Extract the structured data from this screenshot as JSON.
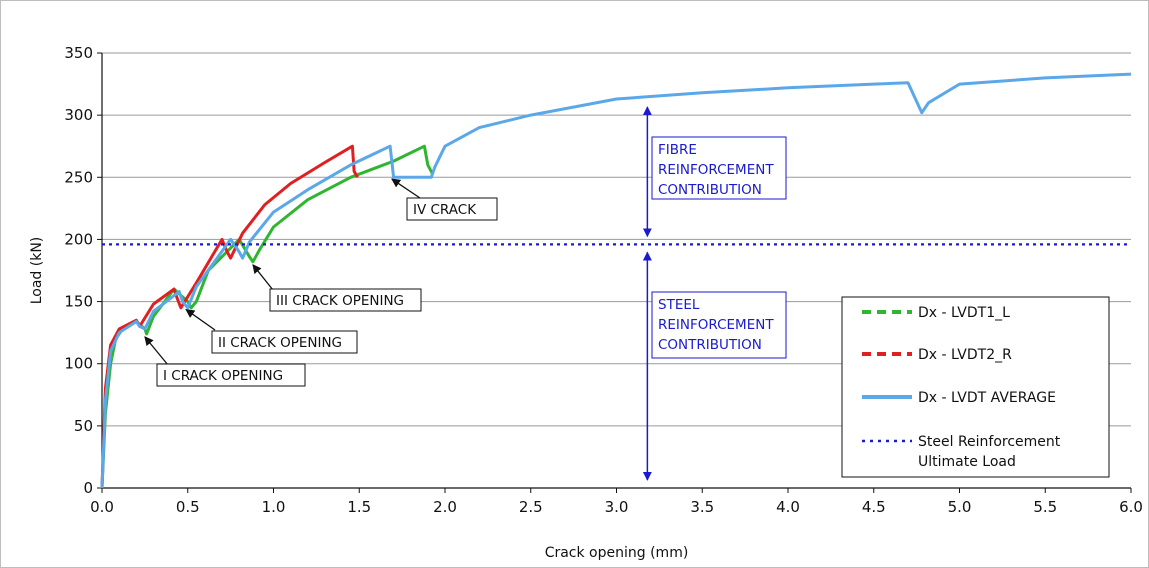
{
  "chart_data": {
    "type": "line",
    "xlabel": "Crack opening (mm)",
    "ylabel": "Load (kN)",
    "xlim": [
      0,
      6
    ],
    "ylim": [
      0,
      350
    ],
    "xticks": [
      "0.0",
      "0.5",
      "1.0",
      "1.5",
      "2.0",
      "2.5",
      "3.0",
      "3.5",
      "4.0",
      "4.5",
      "5.0",
      "5.5",
      "6.0"
    ],
    "yticks": [
      "0",
      "50",
      "100",
      "150",
      "200",
      "250",
      "300",
      "350"
    ],
    "grid": "horizontal",
    "legend_position": "right",
    "series": [
      {
        "name": "Dx - LVDT1_L",
        "color": "#2fb52f",
        "style": "dashed",
        "x": [
          0,
          0.02,
          0.05,
          0.08,
          0.12,
          0.2,
          0.25,
          0.26,
          0.3,
          0.42,
          0.5,
          0.52,
          0.55,
          0.62,
          0.8,
          0.86,
          0.88,
          0.92,
          1.0,
          1.2,
          1.45,
          1.7,
          1.88,
          1.9,
          1.93
        ],
        "y": [
          0,
          60,
          100,
          120,
          128,
          134,
          128,
          124,
          138,
          160,
          150,
          145,
          150,
          175,
          200,
          186,
          182,
          192,
          210,
          232,
          250,
          263,
          275,
          260,
          252
        ]
      },
      {
        "name": "Dx - LVDT2_R",
        "color": "#e02020",
        "style": "dashed",
        "x": [
          0,
          0.02,
          0.05,
          0.1,
          0.2,
          0.22,
          0.3,
          0.42,
          0.44,
          0.46,
          0.55,
          0.7,
          0.73,
          0.75,
          0.82,
          0.95,
          1.1,
          1.3,
          1.46,
          1.47,
          1.49
        ],
        "y": [
          0,
          80,
          115,
          128,
          135,
          130,
          148,
          160,
          152,
          145,
          165,
          200,
          190,
          185,
          205,
          228,
          245,
          262,
          275,
          255,
          250
        ]
      },
      {
        "name": "Dx - LVDT AVERAGE",
        "color": "#5aa8ea",
        "style": "solid",
        "x": [
          0,
          0.02,
          0.05,
          0.1,
          0.2,
          0.22,
          0.25,
          0.3,
          0.45,
          0.47,
          0.5,
          0.55,
          0.75,
          0.8,
          0.82,
          0.86,
          1.0,
          1.2,
          1.45,
          1.68,
          1.7,
          1.92,
          1.94,
          2.0,
          2.2,
          2.5,
          3.0,
          3.5,
          4.0,
          4.5,
          4.7,
          4.78,
          4.82,
          5.0,
          5.5,
          6.0
        ],
        "y": [
          0,
          70,
          110,
          125,
          134,
          130,
          128,
          142,
          158,
          150,
          145,
          162,
          200,
          190,
          185,
          198,
          222,
          240,
          260,
          275,
          250,
          250,
          258,
          275,
          290,
          300,
          313,
          318,
          322,
          325,
          326,
          302,
          310,
          325,
          330,
          333
        ]
      },
      {
        "name": "Steel Reinforcement Ultimate Load",
        "color": "#1a1ad0",
        "style": "dotted",
        "x": [
          0,
          6
        ],
        "y": [
          196,
          196
        ]
      }
    ],
    "annotations": [
      {
        "text": "I CRACK OPENING",
        "arrow_to": [
          0.25,
          124
        ]
      },
      {
        "text": "II CRACK OPENING",
        "arrow_to": [
          0.49,
          146
        ]
      },
      {
        "text": "III CRACK OPENING",
        "arrow_to": [
          0.88,
          182
        ]
      },
      {
        "text": "IV CRACK",
        "arrow_to": [
          1.69,
          251
        ]
      }
    ],
    "range_labels": [
      {
        "lines": [
          "FIBRE",
          "REINFORCEMENT",
          "CONTRIBUTION"
        ],
        "x": 3.18,
        "y_from": 196,
        "y_to": 313
      },
      {
        "lines": [
          "STEEL",
          "REINFORCEMENT",
          "CONTRIBUTION"
        ],
        "x": 3.18,
        "y_from": 0,
        "y_to": 196
      }
    ],
    "legend": [
      {
        "line1": "Dx - LVDT1_L",
        "line2": ""
      },
      {
        "line1": "Dx - LVDT2_R",
        "line2": ""
      },
      {
        "line1": "Dx - LVDT AVERAGE",
        "line2": ""
      },
      {
        "line1": "Steel Reinforcement",
        "line2": "Ultimate Load"
      }
    ]
  }
}
